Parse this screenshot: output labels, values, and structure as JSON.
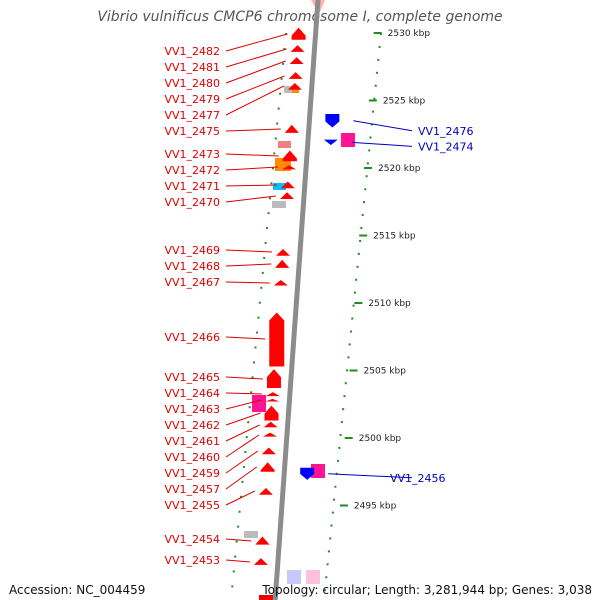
{
  "title": "Vibrio vulnificus CMCP6 chromosome I, complete genome",
  "accession": "Accession: NC_004459",
  "topology": "Topology: circular; Length: 3,281,944 bp; Genes: 3,038",
  "colors": {
    "forward_gene": "#ff0000",
    "reverse_gene": "#0000ff",
    "forward_label": "#dd0000",
    "reverse_label": "#0000bb",
    "backbone": "#888888",
    "tick": "#228b22"
  },
  "kbp_ticks": [
    {
      "label": "2530 kbp",
      "value": 2530
    },
    {
      "label": "2525 kbp",
      "value": 2525
    },
    {
      "label": "2520 kbp",
      "value": 2520
    },
    {
      "label": "2515 kbp",
      "value": 2515
    },
    {
      "label": "2510 kbp",
      "value": 2510
    },
    {
      "label": "2505 kbp",
      "value": 2505
    },
    {
      "label": "2500 kbp",
      "value": 2500
    },
    {
      "label": "2495 kbp",
      "value": 2495
    }
  ],
  "forward_genes": [
    {
      "label": "VV1_2482",
      "start": 2530.4,
      "end": 2529.5
    },
    {
      "label": "VV1_2481",
      "start": 2529.1,
      "end": 2528.6
    },
    {
      "label": "VV1_2480",
      "start": 2528.2,
      "end": 2527.7
    },
    {
      "label": "VV1_2479",
      "start": 2527.1,
      "end": 2526.6
    },
    {
      "label": "VV1_2477",
      "start": 2526.3,
      "end": 2525.8
    },
    {
      "label": "VV1_2475",
      "start": 2523.2,
      "end": 2522.6
    },
    {
      "label": "VV1_2473",
      "start": 2521.3,
      "end": 2520.5
    },
    {
      "label": "VV1_2472",
      "start": 2520.2,
      "end": 2519.9
    },
    {
      "label": "VV1_2471",
      "start": 2519.0,
      "end": 2518.5
    },
    {
      "label": "VV1_2470",
      "start": 2518.2,
      "end": 2517.7
    },
    {
      "label": "VV1_2469",
      "start": 2514.0,
      "end": 2513.5
    },
    {
      "label": "VV1_2468",
      "start": 2513.2,
      "end": 2512.6
    },
    {
      "label": "VV1_2467",
      "start": 2511.7,
      "end": 2511.3
    },
    {
      "label": "VV1_2466",
      "start": 2509.3,
      "end": 2505.3
    },
    {
      "label": "VV1_2465",
      "start": 2505.1,
      "end": 2503.7
    },
    {
      "label": "VV1_2464",
      "start": 2503.4,
      "end": 2503.1
    },
    {
      "label": "VV1_2463",
      "start": 2502.9,
      "end": 2502.7
    },
    {
      "label": "VV1_2462",
      "start": 2502.4,
      "end": 2501.3
    },
    {
      "label": "VV1_2461",
      "start": 2501.2,
      "end": 2500.8
    },
    {
      "label": "VV1_2460",
      "start": 2500.4,
      "end": 2500.1
    },
    {
      "label": "VV1_2459",
      "start": 2499.3,
      "end": 2498.8
    },
    {
      "label": "VV1_2457",
      "start": 2498.2,
      "end": 2497.5
    },
    {
      "label": "VV1_2455",
      "start": 2496.3,
      "end": 2495.8
    },
    {
      "label": "VV1_2454",
      "start": 2492.7,
      "end": 2492.1
    },
    {
      "label": "VV1_2453",
      "start": 2491.1,
      "end": 2490.6
    }
  ],
  "reverse_genes": [
    {
      "label": "VV1_2476",
      "start": 2523.0,
      "end": 2524.0
    },
    {
      "label": "VV1_2474",
      "start": 2521.7,
      "end": 2522.1
    },
    {
      "label": "VV1_2456",
      "start": 2496.9,
      "end": 2497.8
    }
  ]
}
